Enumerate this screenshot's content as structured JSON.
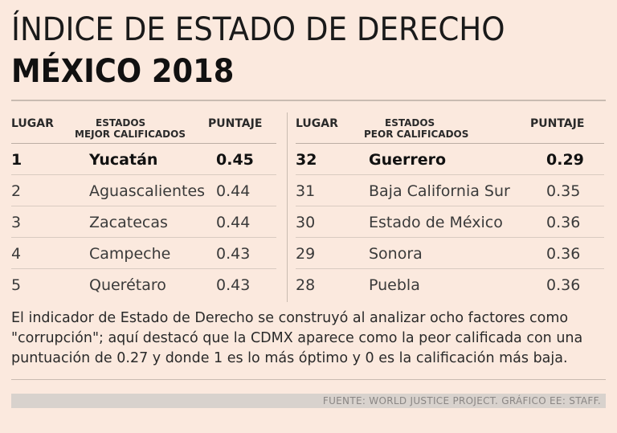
{
  "header": {
    "title_line1": "ÍNDICE DE ESTADO DE DERECHO",
    "title_line2": "MÉXICO 2018"
  },
  "best": {
    "col_rank": "LUGAR",
    "col_state_line1": "ESTADOS",
    "col_state_line2": "MEJOR CALIFICADOS",
    "col_score": "PUNTAJE",
    "rows": [
      {
        "rank": "1",
        "state": "Yucatán",
        "score": "0.45"
      },
      {
        "rank": "2",
        "state": "Aguascalientes",
        "score": "0.44"
      },
      {
        "rank": "3",
        "state": "Zacatecas",
        "score": "0.44"
      },
      {
        "rank": "4",
        "state": "Campeche",
        "score": "0.43"
      },
      {
        "rank": "5",
        "state": "Querétaro",
        "score": "0.43"
      }
    ]
  },
  "worst": {
    "col_rank": "LUGAR",
    "col_state_line1": "ESTADOS",
    "col_state_line2": "PEOR CALIFICADOS",
    "col_score": "PUNTAJE",
    "rows": [
      {
        "rank": "32",
        "state": "Guerrero",
        "score": "0.29"
      },
      {
        "rank": "31",
        "state": "Baja California Sur",
        "score": "0.35"
      },
      {
        "rank": "30",
        "state": "Estado de México",
        "score": "0.36"
      },
      {
        "rank": "29",
        "state": "Sonora",
        "score": "0.36"
      },
      {
        "rank": "28",
        "state": "Puebla",
        "score": "0.36"
      }
    ]
  },
  "note": "El indicador de Estado de Derecho se construyó al analizar ocho factores como \"corrupción\"; aquí destacó que la CDMX aparece como la peor calificada con una puntuación de 0.27 y donde 1 es lo más óptimo y 0 es la calificación más baja.",
  "source": "FUENTE: WORLD JUSTICE PROJECT. GRÁFICO EE: STAFF.",
  "colors": {
    "background": "#fbe9de",
    "rule": "#c9bbb1",
    "source_bar": "#d8d2cd"
  }
}
